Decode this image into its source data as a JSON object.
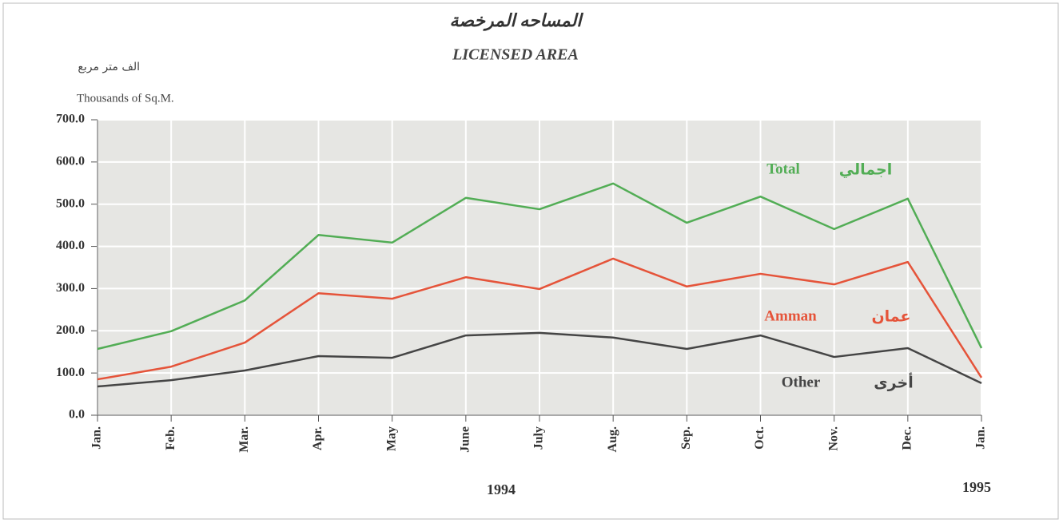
{
  "chart_data": {
    "type": "line",
    "title": "المساحه المرخصة",
    "subtitle": "LICENSED AREA",
    "y_label_ar": "الف متر مربع",
    "y_label": "Thousands of Sq.M.",
    "categories": [
      "Jan.",
      "Feb.",
      "Mar.",
      "Apr.",
      "May",
      "June",
      "July",
      "Aug.",
      "Sep.",
      "Oct.",
      "Nov.",
      "Dec.",
      "Jan."
    ],
    "annotations": [
      "1994",
      "1995"
    ],
    "series": [
      {
        "name": "Total",
        "name_ar": "اجمالي",
        "color": "#52ad55",
        "values": [
          157,
          199,
          272,
          427,
          409,
          515,
          488,
          549,
          456,
          518,
          441,
          513,
          159
        ]
      },
      {
        "name": "Amman",
        "name_ar": "عمان",
        "color": "#e5543a",
        "values": [
          85,
          115,
          172,
          289,
          276,
          327,
          299,
          371,
          305,
          335,
          310,
          363,
          89
        ]
      },
      {
        "name": "Other",
        "name_ar": "أخرى",
        "color": "#454545",
        "values": [
          68,
          83,
          106,
          140,
          136,
          189,
          195,
          184,
          157,
          189,
          138,
          159,
          76
        ]
      }
    ],
    "ylim": [
      0,
      700
    ],
    "yticks": [
      {
        "value": 0,
        "label": "0.0"
      },
      {
        "value": 100,
        "label": "100.0"
      },
      {
        "value": 200,
        "label": "200.0"
      },
      {
        "value": 300,
        "label": "300.0"
      },
      {
        "value": 400,
        "label": "400.0"
      },
      {
        "value": 500,
        "label": "500.0"
      },
      {
        "value": 600,
        "label": "600.0"
      },
      {
        "value": 700,
        "label": "700.0"
      }
    ],
    "grid": true
  }
}
